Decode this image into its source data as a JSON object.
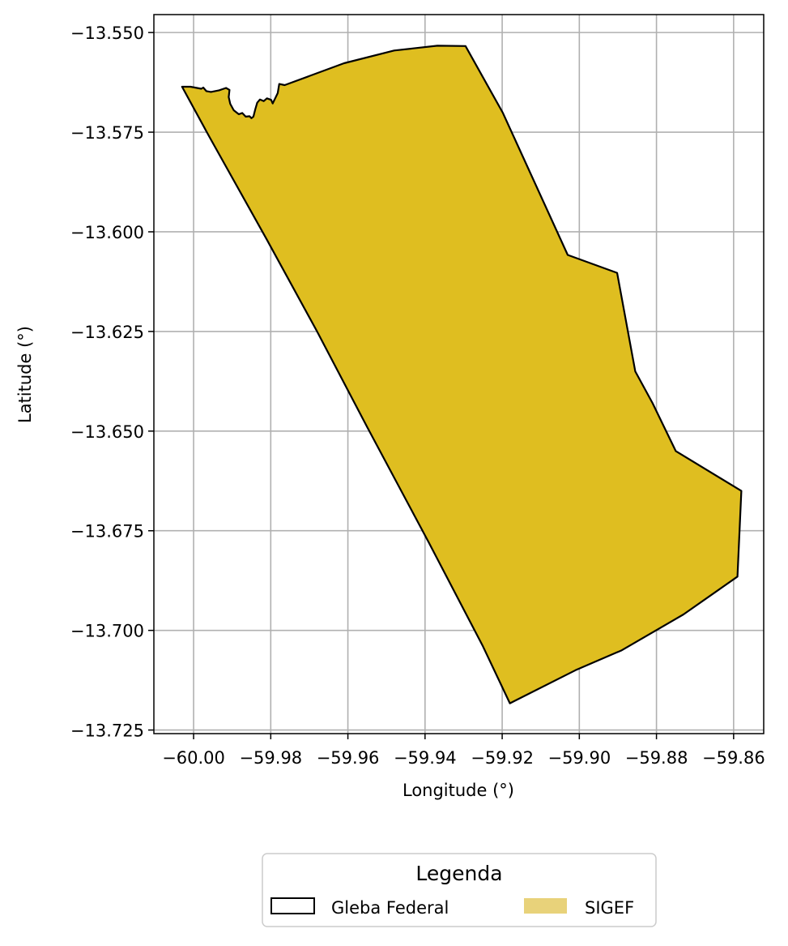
{
  "chart_data": {
    "type": "map",
    "xlabel": "Longitude (°)",
    "ylabel": "Latitude (°)",
    "xlim": [
      -60.0103,
      -59.8522
    ],
    "ylim": [
      -13.7259,
      -13.5455
    ],
    "x_ticks": [
      -60.0,
      -59.98,
      -59.96,
      -59.94,
      -59.92,
      -59.9,
      -59.88,
      -59.86
    ],
    "x_tick_labels": [
      "−60.00",
      "−59.98",
      "−59.96",
      "−59.94",
      "−59.92",
      "−59.90",
      "−59.88",
      "−59.86"
    ],
    "y_ticks": [
      -13.55,
      -13.575,
      -13.6,
      -13.625,
      -13.65,
      -13.675,
      -13.7,
      -13.725
    ],
    "y_tick_labels": [
      "−13.550",
      "−13.575",
      "−13.600",
      "−13.625",
      "−13.650",
      "−13.675",
      "−13.700",
      "−13.725"
    ],
    "grid": true,
    "legend": {
      "title": "Legenda",
      "placement": "bottom-center",
      "entries": [
        {
          "label": "Gleba Federal",
          "style": "outline",
          "color": "#000000"
        },
        {
          "label": "SIGEF",
          "style": "fill",
          "color": "#e8d27a"
        }
      ]
    },
    "series": [
      {
        "name": "SIGEF",
        "fill_color": "#dfbe20",
        "edge_color": "#000000",
        "polygon": [
          [
            -60.003,
            -13.5636
          ],
          [
            -60.0008,
            -13.5636
          ],
          [
            -59.998,
            -13.5641
          ],
          [
            -59.9975,
            -13.5638
          ],
          [
            -59.9967,
            -13.5647
          ],
          [
            -59.9955,
            -13.5649
          ],
          [
            -59.9934,
            -13.5645
          ],
          [
            -59.9916,
            -13.5639
          ],
          [
            -59.9907,
            -13.5644
          ],
          [
            -59.9909,
            -13.5662
          ],
          [
            -59.9905,
            -13.5679
          ],
          [
            -59.9896,
            -13.5695
          ],
          [
            -59.9883,
            -13.5705
          ],
          [
            -59.9874,
            -13.5702
          ],
          [
            -59.9865,
            -13.5711
          ],
          [
            -59.9855,
            -13.571
          ],
          [
            -59.985,
            -13.5715
          ],
          [
            -59.9845,
            -13.5711
          ],
          [
            -59.984,
            -13.5692
          ],
          [
            -59.9835,
            -13.5676
          ],
          [
            -59.9828,
            -13.5668
          ],
          [
            -59.9818,
            -13.5672
          ],
          [
            -59.981,
            -13.5665
          ],
          [
            -59.9799,
            -13.5669
          ],
          [
            -59.9795,
            -13.5678
          ],
          [
            -59.979,
            -13.5668
          ],
          [
            -59.9782,
            -13.5652
          ],
          [
            -59.9778,
            -13.5629
          ],
          [
            -59.9764,
            -13.5632
          ],
          [
            -59.961,
            -13.5577
          ],
          [
            -59.948,
            -13.5545
          ],
          [
            -59.9368,
            -13.5533
          ],
          [
            -59.9295,
            -13.5534
          ],
          [
            -59.9198,
            -13.5702
          ],
          [
            -59.903,
            -13.6058
          ],
          [
            -59.8902,
            -13.6103
          ],
          [
            -59.8855,
            -13.635
          ],
          [
            -59.881,
            -13.643
          ],
          [
            -59.875,
            -13.655
          ],
          [
            -59.858,
            -13.665
          ],
          [
            -59.859,
            -13.6865
          ],
          [
            -59.873,
            -13.696
          ],
          [
            -59.889,
            -13.705
          ],
          [
            -59.901,
            -13.71
          ],
          [
            -59.918,
            -13.7183
          ],
          [
            -59.925,
            -13.704
          ],
          [
            -59.939,
            -13.678
          ],
          [
            -59.955,
            -13.649
          ],
          [
            -59.968,
            -13.625
          ],
          [
            -59.981,
            -13.602
          ],
          [
            -59.996,
            -13.576
          ],
          [
            -60.003,
            -13.5636
          ]
        ]
      }
    ]
  }
}
